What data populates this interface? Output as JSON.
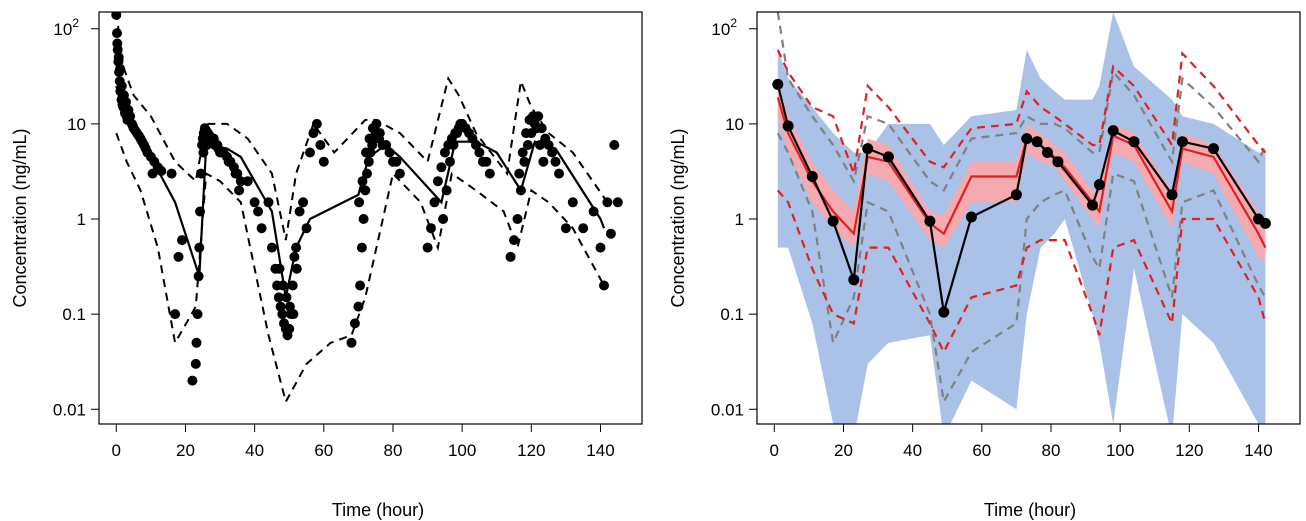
{
  "chart_data": [
    {
      "panel": "left",
      "type": "scatter",
      "xlabel": "Time (hour)",
      "ylabel": "Concentration (ng/mL)",
      "xlim": [
        -5,
        152
      ],
      "ylim": [
        0.007,
        150
      ],
      "y_scale": "log",
      "x_ticks": [
        0,
        20,
        40,
        60,
        80,
        100,
        120,
        140
      ],
      "y_ticks": [
        {
          "value": 0.01,
          "label": "0.01"
        },
        {
          "value": 0.1,
          "label": "0.1"
        },
        {
          "value": 1,
          "label": "1"
        },
        {
          "value": 10,
          "label": "10"
        },
        {
          "value": 100,
          "label": "10",
          "sup": "2"
        }
      ],
      "colors": {
        "points": "#000000",
        "lines": "#000000"
      },
      "median_line": {
        "x": [
          0,
          2,
          5,
          10,
          17,
          24,
          26,
          32,
          36,
          45,
          49,
          52,
          56,
          70,
          73,
          78,
          82,
          94,
          98,
          104,
          110,
          117,
          121,
          127,
          140,
          141
        ],
        "y": [
          25,
          14,
          8,
          4.5,
          1.5,
          0.25,
          6,
          5.5,
          4.5,
          1.2,
          0.15,
          0.5,
          1,
          1.8,
          4.5,
          6,
          4.5,
          1.5,
          6.5,
          6.5,
          5,
          2,
          6.5,
          5.5,
          1,
          0.8
        ]
      },
      "upper_line": {
        "x": [
          0,
          2,
          5,
          10,
          17,
          23,
          26,
          32,
          38,
          45,
          49,
          52,
          57,
          63,
          72,
          75,
          82,
          90,
          96,
          99,
          104,
          113,
          117,
          120,
          125,
          132,
          142
        ],
        "y": [
          150,
          40,
          20,
          12,
          4,
          2.5,
          10,
          10,
          7,
          3,
          0.6,
          3,
          10,
          5,
          11,
          11,
          8,
          4,
          30,
          20,
          8,
          3,
          28,
          15,
          8,
          5,
          1.5
        ]
      },
      "lower_line": {
        "x": [
          0,
          3,
          7,
          12,
          17,
          23,
          26,
          30,
          36,
          44,
          49,
          55,
          62,
          68,
          72,
          80,
          88,
          93,
          97,
          104,
          112,
          116,
          120,
          125,
          132,
          141
        ],
        "y": [
          8,
          4,
          2,
          0.5,
          0.05,
          0.12,
          3,
          2.5,
          1.5,
          0.06,
          0.012,
          0.03,
          0.05,
          0.06,
          0.15,
          3,
          1.5,
          0.5,
          3,
          2,
          1.2,
          0.5,
          2,
          1.5,
          0.8,
          0.2
        ]
      },
      "points": {
        "x": [
          0,
          0.2,
          0.4,
          0.6,
          0.8,
          1,
          1.2,
          1.5,
          1.8,
          2,
          2.5,
          3,
          0.3,
          0.7,
          1.1,
          1.6,
          2.2,
          2.8,
          3.5,
          4,
          4.5,
          5,
          6,
          7,
          8,
          9,
          10,
          11,
          12,
          3.2,
          4.8,
          5.5,
          6.5,
          7.5,
          8.5,
          10.5,
          13,
          16,
          17,
          18,
          19,
          22,
          23,
          23.2,
          23.5,
          23.8,
          24,
          24.2,
          24.5,
          24.8,
          25,
          25.3,
          25.6,
          26,
          26.5,
          27,
          27.5,
          28,
          28.5,
          29,
          29.5,
          30,
          31,
          32,
          33,
          34,
          35,
          36,
          25.2,
          26.2,
          27.2,
          28.2,
          29.2,
          30.5,
          32.5,
          34.5,
          35.5,
          38,
          40,
          41,
          42,
          44,
          45,
          46,
          46.5,
          47,
          47.5,
          48,
          48.5,
          49,
          49.5,
          50,
          50.5,
          51,
          51.5,
          52,
          53,
          54,
          55,
          56,
          57,
          58,
          59,
          60,
          47.2,
          48.2,
          49.2,
          50.2,
          51.2,
          52.2,
          68,
          69,
          70,
          70.5,
          71,
          71.5,
          72,
          72.5,
          73,
          73.5,
          74,
          74.5,
          75,
          75.5,
          76,
          77,
          78,
          79,
          80,
          81,
          82,
          70.2,
          71.2,
          72.2,
          73.2,
          74.2,
          75.2,
          76.2,
          90,
          91,
          92,
          93,
          94,
          95,
          96,
          97,
          98,
          99,
          100,
          101,
          102,
          103,
          104,
          105,
          106,
          107,
          108,
          94.5,
          95.5,
          96.5,
          97.5,
          98.5,
          99.5,
          114,
          115,
          116,
          117,
          118,
          119,
          120,
          121,
          122,
          123,
          124,
          125,
          126,
          127,
          128,
          116.5,
          117.5,
          118.5,
          119.5,
          120.5,
          121.5,
          122.5,
          123.5,
          130,
          132,
          135,
          138,
          140,
          141,
          142,
          143,
          144,
          145
        ],
        "y": [
          140,
          90,
          60,
          45,
          35,
          28,
          22,
          18,
          16,
          15,
          13,
          12,
          70,
          50,
          38,
          25,
          20,
          17,
          14,
          12,
          10,
          9,
          8,
          7,
          6,
          5,
          4.5,
          4,
          3.5,
          11,
          9.5,
          8.5,
          7.5,
          6.5,
          5.5,
          3,
          3.2,
          3,
          0.1,
          0.4,
          0.6,
          0.02,
          0.03,
          0.05,
          0.1,
          0.25,
          0.5,
          1.2,
          3,
          6,
          7,
          8,
          9,
          8.5,
          8,
          7.5,
          7,
          6.5,
          6,
          6,
          5.5,
          5,
          5,
          4.5,
          4,
          3.5,
          3,
          2.5,
          5,
          6,
          7,
          7,
          6,
          5,
          4,
          3,
          2,
          2.5,
          1.5,
          1.2,
          0.8,
          1.5,
          0.5,
          0.3,
          0.2,
          0.15,
          0.12,
          0.1,
          0.08,
          0.07,
          0.06,
          0.07,
          0.1,
          0.2,
          0.4,
          0.5,
          1.2,
          1.5,
          0.8,
          5,
          8,
          10,
          6,
          4,
          0.3,
          0.2,
          0.15,
          0.12,
          0.1,
          0.3,
          0.05,
          0.08,
          0.12,
          0.2,
          0.5,
          1,
          2,
          3,
          4,
          5,
          6,
          7,
          8,
          8,
          7,
          6,
          6,
          5,
          4,
          4,
          3,
          1.5,
          2.5,
          5,
          7,
          9,
          10,
          8,
          0.5,
          0.8,
          1.5,
          2.5,
          3.5,
          5,
          6,
          7,
          8,
          9,
          10,
          9,
          8,
          7,
          6,
          5,
          4,
          4,
          3,
          1,
          2,
          4,
          6,
          8,
          10,
          0.4,
          0.6,
          1,
          2,
          4,
          6,
          8,
          10,
          12,
          9,
          7,
          6,
          5,
          4,
          3,
          3,
          5,
          8,
          11,
          12,
          9,
          6,
          4,
          0.8,
          1.5,
          0.8,
          1.2,
          0.5,
          0.2,
          1.5,
          0.7,
          6,
          1.5
        ]
      }
    },
    {
      "panel": "right",
      "type": "line",
      "xlabel": "Time (hour)",
      "ylabel": "Concentration (ng/mL)",
      "xlim": [
        -5,
        152
      ],
      "ylim": [
        0.007,
        150
      ],
      "y_scale": "log",
      "x_ticks": [
        0,
        20,
        40,
        60,
        80,
        100,
        120,
        140
      ],
      "y_ticks": [
        {
          "value": 0.01,
          "label": "0.01"
        },
        {
          "value": 0.1,
          "label": "0.1"
        },
        {
          "value": 1,
          "label": "1"
        },
        {
          "value": 10,
          "label": "10"
        },
        {
          "value": 100,
          "label": "10",
          "sup": "2"
        }
      ],
      "colors": {
        "blue_band": "#aac2e8",
        "pink_band": "#f4aaaf",
        "red": "#e02020",
        "grey": "#808080",
        "observed": "#000000"
      },
      "x": [
        1,
        4,
        11,
        17,
        23,
        27,
        33,
        45,
        49,
        57,
        70,
        73,
        77,
        81,
        84,
        92,
        94,
        98,
        104,
        115,
        118,
        127,
        140,
        142
      ],
      "blue_band": {
        "upper": [
          60,
          30,
          15,
          8,
          5,
          5,
          10,
          10,
          6,
          12,
          14,
          60,
          30,
          22,
          18,
          18,
          25,
          150,
          40,
          18,
          12,
          10,
          5,
          5
        ],
        "lower": [
          0.5,
          0.5,
          0.08,
          0.007,
          0.005,
          0.03,
          0.05,
          0.06,
          0.005,
          0.02,
          0.01,
          0.1,
          0.5,
          0.7,
          1,
          0.1,
          0.05,
          0.007,
          0.3,
          0.005,
          0.1,
          0.05,
          0.007,
          0.005
        ]
      },
      "pink_band": {
        "upper": [
          28,
          12,
          4,
          2,
          1.2,
          7,
          6,
          1.2,
          1.1,
          4,
          4,
          10,
          8,
          6,
          5,
          2,
          2,
          10,
          8,
          2,
          8,
          6,
          1.2,
          1
        ],
        "lower": [
          12,
          5,
          1.5,
          0.8,
          0.5,
          3,
          2.5,
          0.6,
          0.5,
          1.5,
          1.5,
          5,
          4,
          3.5,
          2.5,
          1,
          0.8,
          5,
          4,
          0.8,
          4,
          3,
          0.4,
          0.35
        ]
      },
      "red_median": [
        19,
        8,
        2.5,
        1.2,
        0.7,
        4.5,
        4,
        0.9,
        0.7,
        2.8,
        2.8,
        7,
        6,
        4.5,
        3.5,
        1.5,
        1.2,
        7.5,
        6,
        1.2,
        5.5,
        4.5,
        0.7,
        0.5
      ],
      "red_upper": [
        60,
        35,
        15,
        12,
        3,
        25,
        15,
        4,
        3.5,
        9,
        10,
        22,
        15,
        12,
        10,
        6,
        6,
        40,
        25,
        6,
        55,
        25,
        6,
        5
      ],
      "red_lower": [
        2,
        1.5,
        0.3,
        0.1,
        0.08,
        0.5,
        0.5,
        0.08,
        0.04,
        0.15,
        0.2,
        0.5,
        0.6,
        0.6,
        0.6,
        0.1,
        0.06,
        0.5,
        0.6,
        0.08,
        1,
        1,
        0.15,
        0.08
      ],
      "grey_upper": [
        150,
        30,
        12,
        6,
        2.5,
        12,
        10,
        2.5,
        2,
        7,
        8,
        12,
        10,
        10,
        9,
        5,
        5,
        35,
        20,
        4,
        30,
        15,
        4,
        6
      ],
      "grey_lower": [
        8,
        5,
        1.2,
        0.05,
        0.15,
        1.5,
        1.2,
        0.1,
        0.012,
        0.04,
        0.08,
        1,
        1.5,
        1.8,
        2,
        0.4,
        0.3,
        3,
        2.5,
        0.15,
        1.5,
        2,
        0.2,
        0.15
      ],
      "observed": {
        "x": [
          1,
          4,
          11,
          17,
          23,
          27,
          33,
          45,
          49,
          57,
          70,
          73,
          76,
          79,
          82,
          92,
          94,
          98,
          104,
          115,
          118,
          127,
          140,
          142
        ],
        "y": [
          26,
          9.5,
          2.8,
          0.95,
          0.23,
          5.5,
          4.5,
          0.95,
          0.105,
          1.05,
          1.8,
          7,
          6.5,
          5,
          4,
          1.4,
          2.3,
          8.5,
          6.5,
          1.8,
          6.5,
          5.5,
          1,
          0.9
        ]
      }
    }
  ]
}
